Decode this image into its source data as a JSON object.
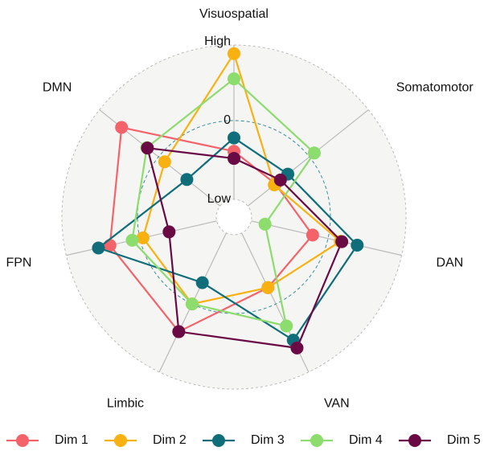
{
  "chart_data": {
    "type": "radar",
    "categories": [
      "Visuospatial",
      "Somatomotor",
      "DAN",
      "VAN",
      "Limbic",
      "FPN",
      "DMN"
    ],
    "ylim": [
      -1,
      1
    ],
    "yticks": [
      {
        "value": -1,
        "label": "Low"
      },
      0,
      {
        "value": 1,
        "label": "High"
      }
    ],
    "legend": "bottom",
    "series": [
      {
        "name": "Dim 1",
        "color": "#f4626a",
        "values": [
          -0.39,
          -0.55,
          -0.2,
          -0.23,
          0.39,
          0.39,
          0.6
        ]
      },
      {
        "name": "Dim 2",
        "color": "#f9b112",
        "values": [
          0.85,
          -0.57,
          0.16,
          -0.23,
          0.0,
          -0.04,
          -0.1
        ]
      },
      {
        "name": "Dim 3",
        "color": "#0f6e7a",
        "values": [
          -0.22,
          -0.35,
          0.38,
          0.51,
          -0.3,
          0.54,
          -0.46
        ]
      },
      {
        "name": "Dim 4",
        "color": "#8cdc6e",
        "values": [
          0.53,
          0.08,
          -0.82,
          0.31,
          0.0,
          0.1,
          0.19
        ]
      },
      {
        "name": "Dim 5",
        "color": "#6a0a45",
        "values": [
          -0.48,
          -0.47,
          0.18,
          0.62,
          0.39,
          -0.38,
          0.18
        ]
      }
    ]
  }
}
